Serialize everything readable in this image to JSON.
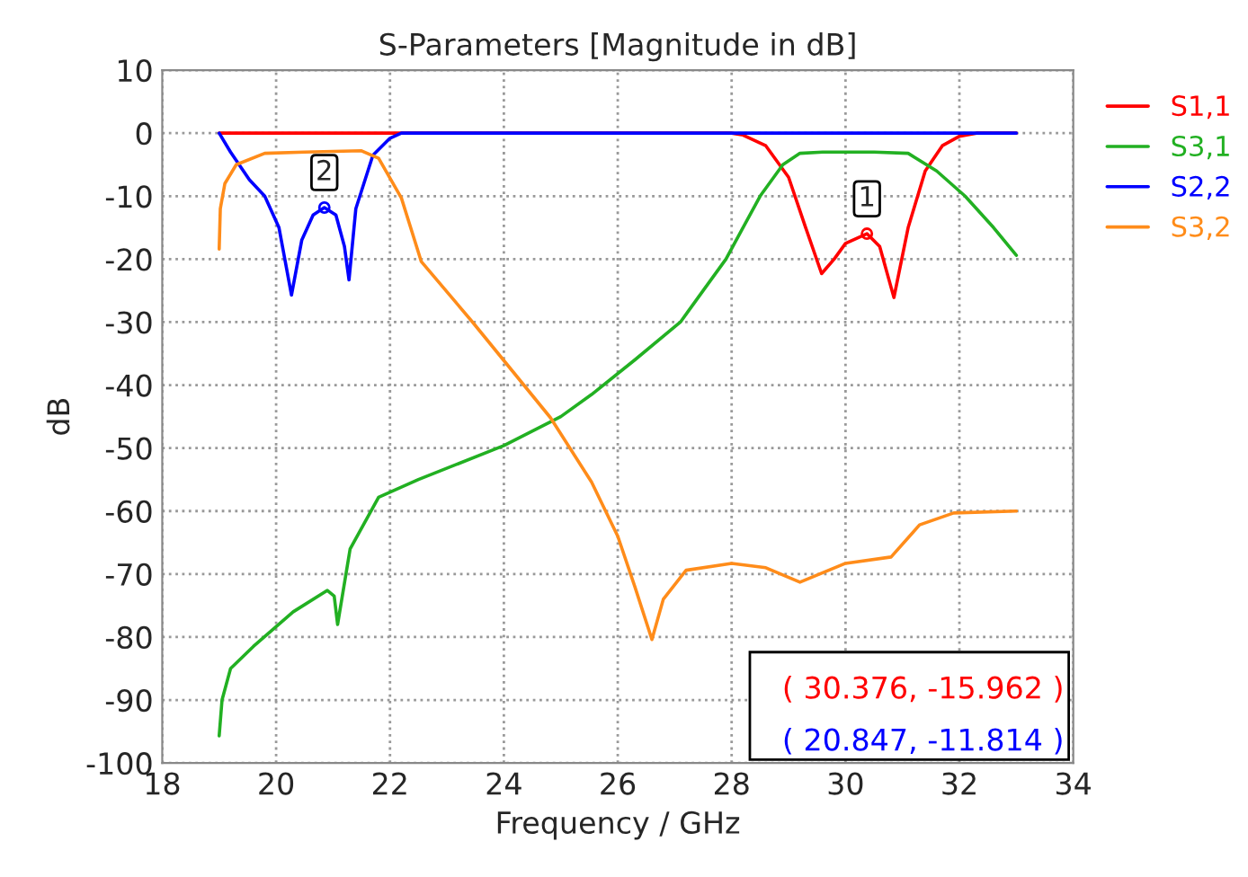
{
  "chart_data": {
    "type": "line",
    "title": "S-Parameters [Magnitude in dB]",
    "xlabel": "Frequency / GHz",
    "ylabel": "dB",
    "xlim": [
      18,
      34
    ],
    "xticks": [
      18,
      20,
      22,
      24,
      26,
      28,
      30,
      32,
      34
    ],
    "ylim": [
      -100,
      10
    ],
    "yticks": [
      -100,
      -90,
      -80,
      -70,
      -60,
      -50,
      -40,
      -30,
      -20,
      -10,
      0,
      10
    ],
    "grid": true,
    "legend": "right",
    "line_style": "solid",
    "series": [
      {
        "name": "S1,1",
        "color": "#ff0000",
        "x": [
          19,
          22,
          26,
          28.0,
          28.2,
          28.6,
          29.0,
          29.3,
          29.58,
          29.8,
          30.0,
          30.376,
          30.6,
          30.85,
          31.1,
          31.4,
          31.7,
          32.0,
          32.3,
          33
        ],
        "values": [
          0,
          0,
          0,
          0,
          -0.3,
          -2,
          -7,
          -15,
          -22.3,
          -20,
          -17.5,
          -15.962,
          -18,
          -26.1,
          -15,
          -6,
          -2,
          -0.5,
          0,
          0
        ]
      },
      {
        "name": "S3,1",
        "color": "#22b022",
        "x": [
          19.0,
          19.05,
          19.2,
          19.6,
          20.3,
          20.9,
          21.02,
          21.08,
          21.3,
          21.8,
          22.5,
          24.0,
          25.0,
          25.54,
          26.3,
          27.1,
          27.5,
          27.9,
          28.5,
          28.9,
          29.2,
          29.6,
          30.5,
          31.1,
          31.6,
          32.1,
          32.6,
          33.0
        ],
        "values": [
          -95.7,
          -90,
          -85,
          -81.5,
          -76,
          -72.6,
          -73.5,
          -78,
          -66,
          -57.8,
          -55,
          -49.6,
          -45,
          -41.5,
          -36,
          -30,
          -25,
          -20,
          -10,
          -5,
          -3.2,
          -3,
          -3,
          -3.2,
          -6,
          -10,
          -15,
          -19.4
        ]
      },
      {
        "name": "S2,2",
        "color": "#0000ff",
        "x": [
          19.0,
          19.2,
          19.53,
          19.8,
          20.05,
          20.27,
          20.45,
          20.65,
          20.847,
          21.05,
          21.2,
          21.28,
          21.4,
          21.7,
          22.0,
          22.2,
          26,
          30,
          33
        ],
        "values": [
          0,
          -3,
          -7.4,
          -10,
          -15,
          -25.7,
          -17,
          -13,
          -11.814,
          -13,
          -18,
          -23.3,
          -12,
          -3.5,
          -0.8,
          0,
          0,
          0,
          0
        ]
      },
      {
        "name": "S3,2",
        "color": "#ff8c1a",
        "x": [
          19.0,
          19.02,
          19.1,
          19.3,
          19.8,
          20.5,
          21.5,
          21.8,
          22.2,
          22.55,
          23.45,
          24.82,
          25.54,
          26.0,
          26.3,
          26.6,
          26.8,
          27.2,
          28.0,
          28.6,
          29.2,
          30.0,
          30.8,
          31.3,
          31.9,
          33.0
        ],
        "values": [
          -18.4,
          -12,
          -8,
          -5,
          -3.2,
          -3,
          -2.8,
          -4,
          -10.3,
          -20.4,
          -30,
          -45.2,
          -55.4,
          -64,
          -72,
          -80.4,
          -74,
          -69.4,
          -68.3,
          -69,
          -71.3,
          -68.3,
          -67.3,
          -62.2,
          -60.3,
          -60
        ]
      }
    ],
    "annotations": [
      {
        "text": "1",
        "x": 30.376,
        "y": -15.962
      },
      {
        "text": "2",
        "x": 20.847,
        "y": -11.814
      },
      "( 30.376, -15.962 )",
      "( 20.847, -11.814 )"
    ]
  }
}
